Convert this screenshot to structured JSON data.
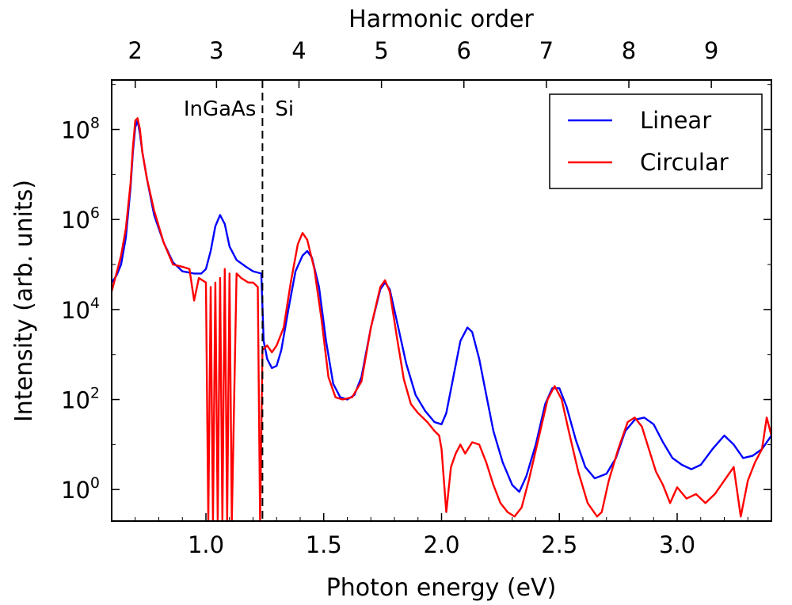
{
  "chart_data": {
    "type": "line",
    "xlabel": "Photon energy (eV)",
    "ylabel": "Intensity (arb. units)",
    "top_xlabel": "Harmonic order",
    "xlim": [
      0.6,
      3.4
    ],
    "ylim_log10": [
      -0.7,
      9.1
    ],
    "y_scale": "log",
    "grid": false,
    "legend_position": "top-right",
    "x_ticks": [
      1.0,
      1.5,
      2.0,
      2.5,
      3.0
    ],
    "x_tick_labels": [
      "1.0",
      "1.5",
      "2.0",
      "2.5",
      "3.0"
    ],
    "y_tick_exponents": [
      0,
      2,
      4,
      6,
      8
    ],
    "y_tick_base": "10",
    "top_ticks": [
      {
        "order": "2",
        "energy": 0.7
      },
      {
        "order": "3",
        "energy": 1.045
      },
      {
        "order": "4",
        "energy": 1.395
      },
      {
        "order": "5",
        "energy": 1.745
      },
      {
        "order": "6",
        "energy": 2.095
      },
      {
        "order": "7",
        "energy": 2.445
      },
      {
        "order": "8",
        "energy": 2.795
      },
      {
        "order": "9",
        "energy": 3.145
      }
    ],
    "divider": {
      "x": 1.24,
      "style": "dashed"
    },
    "region_labels": [
      {
        "text": "InGaAs",
        "side": "left"
      },
      {
        "text": "Si",
        "side": "right"
      }
    ],
    "series": [
      {
        "name": "Linear",
        "color": "#0000ff",
        "points": [
          [
            0.6,
            4.6
          ],
          [
            0.62,
            4.75
          ],
          [
            0.64,
            5.0
          ],
          [
            0.66,
            5.6
          ],
          [
            0.68,
            6.7
          ],
          [
            0.69,
            7.5
          ],
          [
            0.7,
            8.05
          ],
          [
            0.71,
            8.2
          ],
          [
            0.72,
            7.9
          ],
          [
            0.73,
            7.5
          ],
          [
            0.75,
            6.9
          ],
          [
            0.78,
            6.1
          ],
          [
            0.82,
            5.5
          ],
          [
            0.86,
            5.05
          ],
          [
            0.9,
            4.85
          ],
          [
            0.95,
            4.8
          ],
          [
            0.98,
            4.8
          ],
          [
            1.0,
            4.9
          ],
          [
            1.02,
            5.3
          ],
          [
            1.04,
            5.85
          ],
          [
            1.06,
            6.1
          ],
          [
            1.08,
            5.9
          ],
          [
            1.1,
            5.4
          ],
          [
            1.13,
            5.1
          ],
          [
            1.17,
            4.95
          ],
          [
            1.2,
            4.85
          ],
          [
            1.235,
            4.8
          ],
          [
            1.245,
            3.3
          ],
          [
            1.26,
            2.9
          ],
          [
            1.28,
            2.7
          ],
          [
            1.3,
            2.75
          ],
          [
            1.32,
            3.1
          ],
          [
            1.35,
            4.0
          ],
          [
            1.38,
            4.85
          ],
          [
            1.41,
            5.2
          ],
          [
            1.43,
            5.3
          ],
          [
            1.45,
            5.15
          ],
          [
            1.48,
            4.5
          ],
          [
            1.51,
            3.3
          ],
          [
            1.54,
            2.35
          ],
          [
            1.57,
            2.05
          ],
          [
            1.6,
            2.0
          ],
          [
            1.63,
            2.1
          ],
          [
            1.66,
            2.5
          ],
          [
            1.7,
            3.6
          ],
          [
            1.74,
            4.45
          ],
          [
            1.76,
            4.6
          ],
          [
            1.78,
            4.45
          ],
          [
            1.81,
            3.75
          ],
          [
            1.85,
            2.8
          ],
          [
            1.89,
            2.1
          ],
          [
            1.93,
            1.75
          ],
          [
            1.97,
            1.5
          ],
          [
            2.0,
            1.45
          ],
          [
            2.02,
            1.7
          ],
          [
            2.05,
            2.5
          ],
          [
            2.08,
            3.3
          ],
          [
            2.11,
            3.6
          ],
          [
            2.13,
            3.5
          ],
          [
            2.16,
            2.9
          ],
          [
            2.19,
            2.1
          ],
          [
            2.22,
            1.3
          ],
          [
            2.26,
            0.6
          ],
          [
            2.3,
            0.1
          ],
          [
            2.33,
            -0.05
          ],
          [
            2.36,
            0.3
          ],
          [
            2.4,
            1.0
          ],
          [
            2.44,
            1.9
          ],
          [
            2.47,
            2.25
          ],
          [
            2.5,
            2.25
          ],
          [
            2.53,
            1.85
          ],
          [
            2.57,
            1.1
          ],
          [
            2.61,
            0.5
          ],
          [
            2.65,
            0.25
          ],
          [
            2.7,
            0.35
          ],
          [
            2.74,
            0.7
          ],
          [
            2.78,
            1.3
          ],
          [
            2.82,
            1.55
          ],
          [
            2.86,
            1.6
          ],
          [
            2.9,
            1.45
          ],
          [
            2.94,
            1.05
          ],
          [
            2.98,
            0.7
          ],
          [
            3.02,
            0.55
          ],
          [
            3.06,
            0.45
          ],
          [
            3.1,
            0.55
          ],
          [
            3.15,
            0.9
          ],
          [
            3.2,
            1.2
          ],
          [
            3.24,
            1.0
          ],
          [
            3.28,
            0.7
          ],
          [
            3.32,
            0.75
          ],
          [
            3.36,
            0.9
          ],
          [
            3.4,
            1.2
          ]
        ]
      },
      {
        "name": "Circular",
        "color": "#ff0000",
        "points": [
          [
            0.6,
            4.4
          ],
          [
            0.62,
            4.8
          ],
          [
            0.64,
            5.2
          ],
          [
            0.66,
            5.8
          ],
          [
            0.68,
            6.8
          ],
          [
            0.69,
            7.6
          ],
          [
            0.7,
            8.2
          ],
          [
            0.71,
            8.25
          ],
          [
            0.72,
            8.0
          ],
          [
            0.73,
            7.5
          ],
          [
            0.75,
            6.9
          ],
          [
            0.78,
            6.2
          ],
          [
            0.82,
            5.5
          ],
          [
            0.86,
            5.0
          ],
          [
            0.9,
            4.95
          ],
          [
            0.93,
            4.9
          ],
          [
            0.95,
            4.2
          ],
          [
            0.97,
            4.7
          ],
          [
            1.0,
            4.6
          ],
          [
            1.01,
            -0.7
          ],
          [
            1.02,
            4.5
          ],
          [
            1.03,
            -0.7
          ],
          [
            1.04,
            4.6
          ],
          [
            1.05,
            -0.7
          ],
          [
            1.06,
            4.7
          ],
          [
            1.07,
            -0.7
          ],
          [
            1.08,
            4.9
          ],
          [
            1.09,
            -0.7
          ],
          [
            1.1,
            4.8
          ],
          [
            1.11,
            -0.7
          ],
          [
            1.13,
            4.8
          ],
          [
            1.15,
            4.7
          ],
          [
            1.18,
            4.6
          ],
          [
            1.2,
            4.6
          ],
          [
            1.22,
            4.5
          ],
          [
            1.23,
            -0.7
          ],
          [
            1.24,
            3.1
          ],
          [
            1.26,
            3.2
          ],
          [
            1.28,
            3.05
          ],
          [
            1.3,
            3.2
          ],
          [
            1.33,
            3.6
          ],
          [
            1.36,
            4.6
          ],
          [
            1.39,
            5.45
          ],
          [
            1.41,
            5.7
          ],
          [
            1.43,
            5.55
          ],
          [
            1.46,
            4.9
          ],
          [
            1.49,
            3.8
          ],
          [
            1.52,
            2.5
          ],
          [
            1.55,
            2.05
          ],
          [
            1.58,
            2.0
          ],
          [
            1.62,
            2.05
          ],
          [
            1.66,
            2.4
          ],
          [
            1.7,
            3.6
          ],
          [
            1.74,
            4.5
          ],
          [
            1.76,
            4.65
          ],
          [
            1.78,
            4.4
          ],
          [
            1.81,
            3.4
          ],
          [
            1.84,
            2.45
          ],
          [
            1.87,
            1.9
          ],
          [
            1.9,
            1.7
          ],
          [
            1.94,
            1.5
          ],
          [
            1.97,
            1.3
          ],
          [
            1.99,
            1.2
          ],
          [
            2.0,
            0.9
          ],
          [
            2.02,
            -0.5
          ],
          [
            2.04,
            0.5
          ],
          [
            2.06,
            0.8
          ],
          [
            2.08,
            1.0
          ],
          [
            2.1,
            0.8
          ],
          [
            2.13,
            1.05
          ],
          [
            2.16,
            1.0
          ],
          [
            2.19,
            0.6
          ],
          [
            2.22,
            0.1
          ],
          [
            2.25,
            -0.3
          ],
          [
            2.28,
            -0.5
          ],
          [
            2.31,
            -0.6
          ],
          [
            2.34,
            -0.4
          ],
          [
            2.37,
            0.2
          ],
          [
            2.41,
            1.1
          ],
          [
            2.45,
            2.0
          ],
          [
            2.48,
            2.3
          ],
          [
            2.51,
            2.0
          ],
          [
            2.54,
            1.3
          ],
          [
            2.58,
            0.4
          ],
          [
            2.62,
            -0.3
          ],
          [
            2.66,
            -0.6
          ],
          [
            2.68,
            -0.5
          ],
          [
            2.71,
            0.2
          ],
          [
            2.75,
            0.9
          ],
          [
            2.79,
            1.5
          ],
          [
            2.82,
            1.6
          ],
          [
            2.85,
            1.4
          ],
          [
            2.88,
            0.9
          ],
          [
            2.91,
            0.4
          ],
          [
            2.94,
            0.1
          ],
          [
            2.97,
            -0.3
          ],
          [
            3.0,
            0.05
          ],
          [
            3.04,
            -0.2
          ],
          [
            3.08,
            -0.1
          ],
          [
            3.12,
            -0.3
          ],
          [
            3.16,
            -0.1
          ],
          [
            3.2,
            0.2
          ],
          [
            3.24,
            0.5
          ],
          [
            3.27,
            -0.6
          ],
          [
            3.3,
            0.2
          ],
          [
            3.33,
            0.6
          ],
          [
            3.36,
            0.9
          ],
          [
            3.38,
            1.6
          ],
          [
            3.4,
            1.2
          ]
        ]
      }
    ]
  }
}
